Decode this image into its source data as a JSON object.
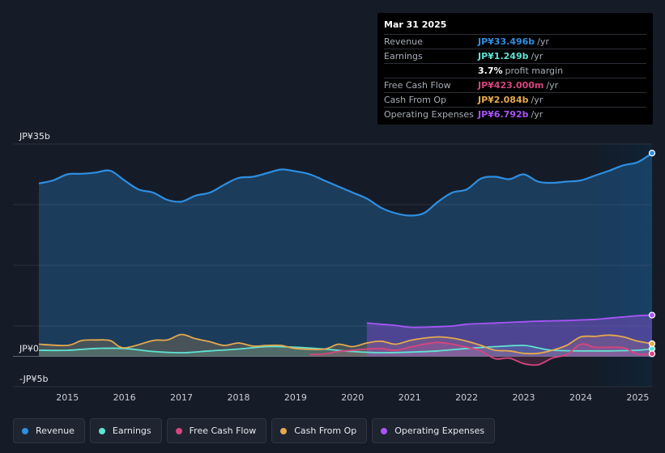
{
  "tooltip": {
    "date": "Mar 31 2025",
    "rows": [
      {
        "label": "Revenue",
        "value": "JP¥33.496b",
        "unit": "/yr",
        "color": "#2d8fe3"
      },
      {
        "label": "Earnings",
        "value": "JP¥1.249b",
        "unit": "/yr",
        "color": "#5fe3d3"
      },
      {
        "label": "",
        "value": "3.7%",
        "unit": "profit margin",
        "color": "#ffffff"
      },
      {
        "label": "Free Cash Flow",
        "value": "JP¥423.000m",
        "unit": "/yr",
        "color": "#d6457f"
      },
      {
        "label": "Cash From Op",
        "value": "JP¥2.084b",
        "unit": "/yr",
        "color": "#e5a94f"
      },
      {
        "label": "Operating Expenses",
        "value": "JP¥6.792b",
        "unit": "/yr",
        "color": "#a855f7"
      }
    ]
  },
  "legend": [
    {
      "label": "Revenue",
      "color": "#2d8fe3"
    },
    {
      "label": "Earnings",
      "color": "#5fe3d3"
    },
    {
      "label": "Free Cash Flow",
      "color": "#d6457f"
    },
    {
      "label": "Cash From Op",
      "color": "#e5a94f"
    },
    {
      "label": "Operating Expenses",
      "color": "#a855f7"
    }
  ],
  "chart_data": {
    "type": "area",
    "title": "",
    "xlabel": "",
    "ylabel": "",
    "ylim": [
      -5,
      35
    ],
    "y_tick_labels": [
      {
        "value": 35,
        "label": "JP¥35b"
      },
      {
        "value": 0,
        "label": "JP¥0"
      },
      {
        "value": -5,
        "label": "-JP¥5b"
      }
    ],
    "x_tick_labels": [
      {
        "value": 2015,
        "label": "2015"
      },
      {
        "value": 2016,
        "label": "2016"
      },
      {
        "value": 2017,
        "label": "2017"
      },
      {
        "value": 2018,
        "label": "2018"
      },
      {
        "value": 2019,
        "label": "2019"
      },
      {
        "value": 2020,
        "label": "2020"
      },
      {
        "value": 2021,
        "label": "2021"
      },
      {
        "value": 2022,
        "label": "2022"
      },
      {
        "value": 2023,
        "label": "2023"
      },
      {
        "value": 2024,
        "label": "2024"
      },
      {
        "value": 2025,
        "label": "2025"
      }
    ],
    "xlim": [
      2014.0,
      2025.25
    ],
    "highlight_from": 2024.25,
    "series": [
      {
        "name": "Revenue",
        "color": "#2d8fe3",
        "points": [
          [
            2014.5,
            28.5
          ],
          [
            2014.75,
            29.0
          ],
          [
            2015.0,
            30.0
          ],
          [
            2015.25,
            30.1
          ],
          [
            2015.5,
            30.3
          ],
          [
            2015.75,
            30.6
          ],
          [
            2016.0,
            29.0
          ],
          [
            2016.25,
            27.5
          ],
          [
            2016.5,
            27.0
          ],
          [
            2016.75,
            25.8
          ],
          [
            2017.0,
            25.5
          ],
          [
            2017.25,
            26.5
          ],
          [
            2017.5,
            27.0
          ],
          [
            2017.75,
            28.3
          ],
          [
            2018.0,
            29.4
          ],
          [
            2018.25,
            29.6
          ],
          [
            2018.5,
            30.2
          ],
          [
            2018.75,
            30.8
          ],
          [
            2019.0,
            30.5
          ],
          [
            2019.25,
            30.0
          ],
          [
            2019.5,
            29.0
          ],
          [
            2019.75,
            28.0
          ],
          [
            2020.0,
            27.0
          ],
          [
            2020.25,
            26.0
          ],
          [
            2020.5,
            24.5
          ],
          [
            2020.75,
            23.6
          ],
          [
            2021.0,
            23.2
          ],
          [
            2021.25,
            23.6
          ],
          [
            2021.5,
            25.5
          ],
          [
            2021.75,
            27.0
          ],
          [
            2022.0,
            27.5
          ],
          [
            2022.25,
            29.3
          ],
          [
            2022.5,
            29.6
          ],
          [
            2022.75,
            29.2
          ],
          [
            2023.0,
            30.0
          ],
          [
            2023.25,
            28.8
          ],
          [
            2023.5,
            28.6
          ],
          [
            2023.75,
            28.8
          ],
          [
            2024.0,
            29.0
          ],
          [
            2024.25,
            29.8
          ],
          [
            2024.5,
            30.6
          ],
          [
            2024.75,
            31.5
          ],
          [
            2025.0,
            32.0
          ],
          [
            2025.25,
            33.5
          ]
        ]
      },
      {
        "name": "Earnings",
        "color": "#5fe3d3",
        "points": [
          [
            2014.5,
            1.0
          ],
          [
            2015.0,
            1.0
          ],
          [
            2015.5,
            1.3
          ],
          [
            2016.0,
            1.3
          ],
          [
            2016.5,
            0.8
          ],
          [
            2017.0,
            0.6
          ],
          [
            2017.5,
            0.9
          ],
          [
            2018.0,
            1.2
          ],
          [
            2018.5,
            1.6
          ],
          [
            2019.0,
            1.5
          ],
          [
            2019.5,
            1.2
          ],
          [
            2020.0,
            0.8
          ],
          [
            2020.5,
            0.6
          ],
          [
            2021.0,
            0.7
          ],
          [
            2021.5,
            0.9
          ],
          [
            2022.0,
            1.3
          ],
          [
            2022.5,
            1.6
          ],
          [
            2023.0,
            1.8
          ],
          [
            2023.25,
            1.4
          ],
          [
            2023.5,
            1.0
          ],
          [
            2024.0,
            0.9
          ],
          [
            2024.5,
            0.9
          ],
          [
            2025.0,
            1.0
          ],
          [
            2025.25,
            1.25
          ]
        ]
      },
      {
        "name": "Free Cash Flow",
        "color": "#d6457f",
        "start": 2019.25,
        "points": [
          [
            2019.25,
            0.3
          ],
          [
            2019.5,
            0.4
          ],
          [
            2019.75,
            0.8
          ],
          [
            2020.0,
            1.0
          ],
          [
            2020.25,
            1.2
          ],
          [
            2020.5,
            1.3
          ],
          [
            2020.75,
            1.0
          ],
          [
            2021.0,
            1.5
          ],
          [
            2021.25,
            2.0
          ],
          [
            2021.5,
            2.3
          ],
          [
            2021.75,
            2.0
          ],
          [
            2022.0,
            1.5
          ],
          [
            2022.25,
            0.9
          ],
          [
            2022.5,
            -0.4
          ],
          [
            2022.75,
            -0.3
          ],
          [
            2023.0,
            -1.2
          ],
          [
            2023.25,
            -1.4
          ],
          [
            2023.5,
            -0.3
          ],
          [
            2023.75,
            0.3
          ],
          [
            2024.0,
            2.0
          ],
          [
            2024.25,
            1.5
          ],
          [
            2024.5,
            1.5
          ],
          [
            2024.75,
            1.4
          ],
          [
            2025.0,
            0.4
          ],
          [
            2025.25,
            0.42
          ]
        ]
      },
      {
        "name": "Cash From Op",
        "color": "#e5a94f",
        "points": [
          [
            2014.5,
            2.0
          ],
          [
            2015.0,
            1.8
          ],
          [
            2015.25,
            2.6
          ],
          [
            2015.5,
            2.7
          ],
          [
            2015.75,
            2.6
          ],
          [
            2016.0,
            1.4
          ],
          [
            2016.5,
            2.6
          ],
          [
            2016.75,
            2.7
          ],
          [
            2017.0,
            3.6
          ],
          [
            2017.25,
            2.9
          ],
          [
            2017.5,
            2.4
          ],
          [
            2017.75,
            1.8
          ],
          [
            2018.0,
            2.2
          ],
          [
            2018.25,
            1.7
          ],
          [
            2018.5,
            1.8
          ],
          [
            2018.75,
            1.8
          ],
          [
            2019.0,
            1.3
          ],
          [
            2019.5,
            1.2
          ],
          [
            2019.75,
            2.0
          ],
          [
            2020.0,
            1.6
          ],
          [
            2020.25,
            2.2
          ],
          [
            2020.5,
            2.5
          ],
          [
            2020.75,
            2.0
          ],
          [
            2021.0,
            2.6
          ],
          [
            2021.25,
            3.0
          ],
          [
            2021.5,
            3.2
          ],
          [
            2021.75,
            3.0
          ],
          [
            2022.0,
            2.5
          ],
          [
            2022.25,
            1.8
          ],
          [
            2022.5,
            1.0
          ],
          [
            2022.75,
            0.9
          ],
          [
            2023.0,
            0.5
          ],
          [
            2023.25,
            0.5
          ],
          [
            2023.5,
            1.0
          ],
          [
            2023.75,
            1.8
          ],
          [
            2024.0,
            3.2
          ],
          [
            2024.25,
            3.3
          ],
          [
            2024.5,
            3.5
          ],
          [
            2024.75,
            3.2
          ],
          [
            2025.0,
            2.5
          ],
          [
            2025.25,
            2.08
          ]
        ]
      },
      {
        "name": "Operating Expenses",
        "color": "#a855f7",
        "start": 2020.25,
        "points": [
          [
            2020.25,
            5.5
          ],
          [
            2020.5,
            5.3
          ],
          [
            2020.75,
            5.1
          ],
          [
            2021.0,
            4.8
          ],
          [
            2021.25,
            4.8
          ],
          [
            2021.5,
            4.9
          ],
          [
            2021.75,
            5.0
          ],
          [
            2022.0,
            5.3
          ],
          [
            2022.25,
            5.4
          ],
          [
            2022.5,
            5.5
          ],
          [
            2022.75,
            5.6
          ],
          [
            2023.0,
            5.7
          ],
          [
            2023.25,
            5.8
          ],
          [
            2023.5,
            5.85
          ],
          [
            2023.75,
            5.9
          ],
          [
            2024.0,
            6.0
          ],
          [
            2024.25,
            6.1
          ],
          [
            2024.5,
            6.3
          ],
          [
            2024.75,
            6.5
          ],
          [
            2025.0,
            6.7
          ],
          [
            2025.25,
            6.79
          ]
        ]
      }
    ]
  }
}
